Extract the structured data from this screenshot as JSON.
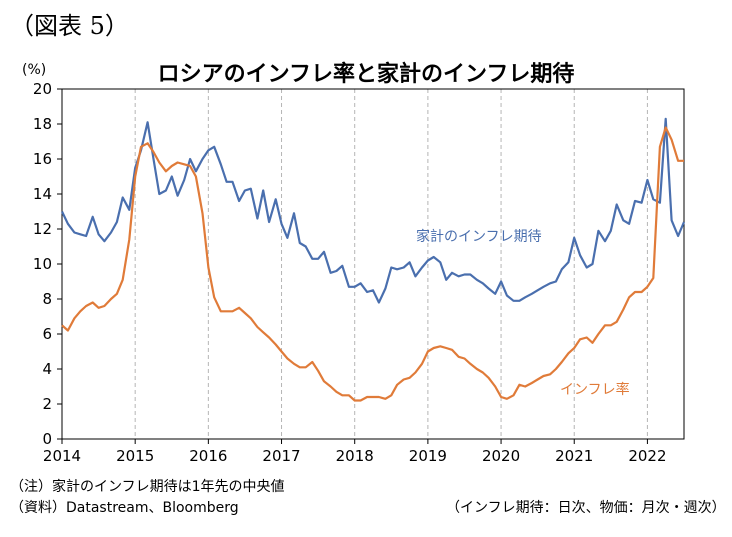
{
  "figure_label": "（図表 5）",
  "chart_data": {
    "type": "line",
    "title": "ロシアのインフレ率と家計のインフレ期待",
    "ylabel": "(%)",
    "xlabel": "",
    "ylim": [
      0,
      20
    ],
    "yticks": [
      0,
      2,
      4,
      6,
      8,
      10,
      12,
      14,
      16,
      18,
      20
    ],
    "xlim": [
      2014,
      2022.5
    ],
    "xticks": [
      "2014",
      "2015",
      "2016",
      "2017",
      "2018",
      "2019",
      "2020",
      "2021",
      "2022"
    ],
    "grid": "vertical dashed lines at each year",
    "series": [
      {
        "name": "家計のインフレ期待",
        "color": "#4a6fae",
        "x": [
          2014.0,
          2014.08,
          2014.17,
          2014.25,
          2014.33,
          2014.42,
          2014.5,
          2014.58,
          2014.67,
          2014.75,
          2014.83,
          2014.92,
          2015.0,
          2015.08,
          2015.17,
          2015.25,
          2015.33,
          2015.42,
          2015.5,
          2015.58,
          2015.67,
          2015.75,
          2015.83,
          2015.92,
          2016.0,
          2016.08,
          2016.17,
          2016.25,
          2016.33,
          2016.42,
          2016.5,
          2016.58,
          2016.67,
          2016.75,
          2016.83,
          2016.92,
          2017.0,
          2017.08,
          2017.17,
          2017.25,
          2017.33,
          2017.42,
          2017.5,
          2017.58,
          2017.67,
          2017.75,
          2017.83,
          2017.92,
          2018.0,
          2018.08,
          2018.17,
          2018.25,
          2018.33,
          2018.42,
          2018.5,
          2018.58,
          2018.67,
          2018.75,
          2018.83,
          2018.92,
          2019.0,
          2019.08,
          2019.17,
          2019.25,
          2019.33,
          2019.42,
          2019.5,
          2019.58,
          2019.67,
          2019.75,
          2019.83,
          2019.92,
          2020.0,
          2020.08,
          2020.17,
          2020.25,
          2020.33,
          2020.42,
          2020.5,
          2020.58,
          2020.67,
          2020.75,
          2020.83,
          2020.92,
          2021.0,
          2021.08,
          2021.17,
          2021.25,
          2021.33,
          2021.42,
          2021.5,
          2021.58,
          2021.67,
          2021.75,
          2021.83,
          2021.92,
          2022.0,
          2022.08,
          2022.17,
          2022.25,
          2022.33,
          2022.42,
          2022.5
        ],
        "values": [
          13.0,
          12.3,
          11.8,
          11.7,
          11.6,
          12.7,
          11.7,
          11.3,
          11.8,
          12.4,
          13.8,
          13.1,
          15.5,
          16.5,
          18.1,
          16.0,
          14.0,
          14.2,
          15.0,
          13.9,
          14.8,
          16.0,
          15.3,
          16.0,
          16.5,
          16.7,
          15.7,
          14.7,
          14.7,
          13.6,
          14.2,
          14.3,
          12.6,
          14.2,
          12.4,
          13.7,
          12.3,
          11.5,
          12.9,
          11.2,
          11.0,
          10.3,
          10.3,
          10.7,
          9.5,
          9.6,
          9.9,
          8.7,
          8.7,
          8.9,
          8.4,
          8.5,
          7.8,
          8.6,
          9.8,
          9.7,
          9.8,
          10.1,
          9.3,
          9.8,
          10.2,
          10.4,
          10.1,
          9.1,
          9.5,
          9.3,
          9.4,
          9.4,
          9.1,
          8.9,
          8.6,
          8.3,
          9.0,
          8.2,
          7.9,
          7.9,
          8.1,
          8.3,
          8.5,
          8.7,
          8.9,
          9.0,
          9.7,
          10.1,
          11.5,
          10.5,
          9.8,
          10.0,
          11.9,
          11.3,
          11.9,
          13.4,
          12.5,
          12.3,
          13.6,
          13.5,
          14.8,
          13.7,
          13.5,
          18.3,
          12.5,
          11.6,
          12.4
        ]
      },
      {
        "name": "インフレ率",
        "color": "#e07b39",
        "x": [
          2014.0,
          2014.08,
          2014.17,
          2014.25,
          2014.33,
          2014.42,
          2014.5,
          2014.58,
          2014.67,
          2014.75,
          2014.83,
          2014.92,
          2015.0,
          2015.08,
          2015.17,
          2015.25,
          2015.33,
          2015.42,
          2015.5,
          2015.58,
          2015.67,
          2015.75,
          2015.83,
          2015.92,
          2016.0,
          2016.08,
          2016.17,
          2016.25,
          2016.33,
          2016.42,
          2016.5,
          2016.58,
          2016.67,
          2016.75,
          2016.83,
          2016.92,
          2017.0,
          2017.08,
          2017.17,
          2017.25,
          2017.33,
          2017.42,
          2017.5,
          2017.58,
          2017.67,
          2017.75,
          2017.83,
          2017.92,
          2018.0,
          2018.08,
          2018.17,
          2018.25,
          2018.33,
          2018.42,
          2018.5,
          2018.58,
          2018.67,
          2018.75,
          2018.83,
          2018.92,
          2019.0,
          2019.08,
          2019.17,
          2019.25,
          2019.33,
          2019.42,
          2019.5,
          2019.58,
          2019.67,
          2019.75,
          2019.83,
          2019.92,
          2020.0,
          2020.08,
          2020.17,
          2020.25,
          2020.33,
          2020.42,
          2020.5,
          2020.58,
          2020.67,
          2020.75,
          2020.83,
          2020.92,
          2021.0,
          2021.08,
          2021.17,
          2021.25,
          2021.33,
          2021.42,
          2021.5,
          2021.58,
          2021.67,
          2021.75,
          2021.83,
          2021.92,
          2022.0,
          2022.08,
          2022.17,
          2022.25,
          2022.33,
          2022.42,
          2022.5
        ],
        "values": [
          6.5,
          6.2,
          6.9,
          7.3,
          7.6,
          7.8,
          7.5,
          7.6,
          8.0,
          8.3,
          9.1,
          11.4,
          15.0,
          16.7,
          16.9,
          16.4,
          15.8,
          15.3,
          15.6,
          15.8,
          15.7,
          15.6,
          15.0,
          12.9,
          9.8,
          8.1,
          7.3,
          7.3,
          7.3,
          7.5,
          7.2,
          6.9,
          6.4,
          6.1,
          5.8,
          5.4,
          5.0,
          4.6,
          4.3,
          4.1,
          4.1,
          4.4,
          3.9,
          3.3,
          3.0,
          2.7,
          2.5,
          2.5,
          2.2,
          2.2,
          2.4,
          2.4,
          2.4,
          2.3,
          2.5,
          3.1,
          3.4,
          3.5,
          3.8,
          4.3,
          5.0,
          5.2,
          5.3,
          5.2,
          5.1,
          4.7,
          4.6,
          4.3,
          4.0,
          3.8,
          3.5,
          3.0,
          2.4,
          2.3,
          2.5,
          3.1,
          3.0,
          3.2,
          3.4,
          3.6,
          3.7,
          4.0,
          4.4,
          4.9,
          5.2,
          5.7,
          5.8,
          5.5,
          6.0,
          6.5,
          6.5,
          6.7,
          7.4,
          8.1,
          8.4,
          8.4,
          8.7,
          9.2,
          16.7,
          17.8,
          17.1,
          15.9,
          15.9
        ]
      }
    ],
    "annotations": [
      "家計のインフレ期待",
      "インフレ率"
    ]
  },
  "notes": {
    "note1": "（注）家計のインフレ期待は1年先の中央値",
    "note2": "（資料）Datastream、Bloomberg",
    "note3": "（インフレ期待：日次、物価：月次・週次）"
  }
}
